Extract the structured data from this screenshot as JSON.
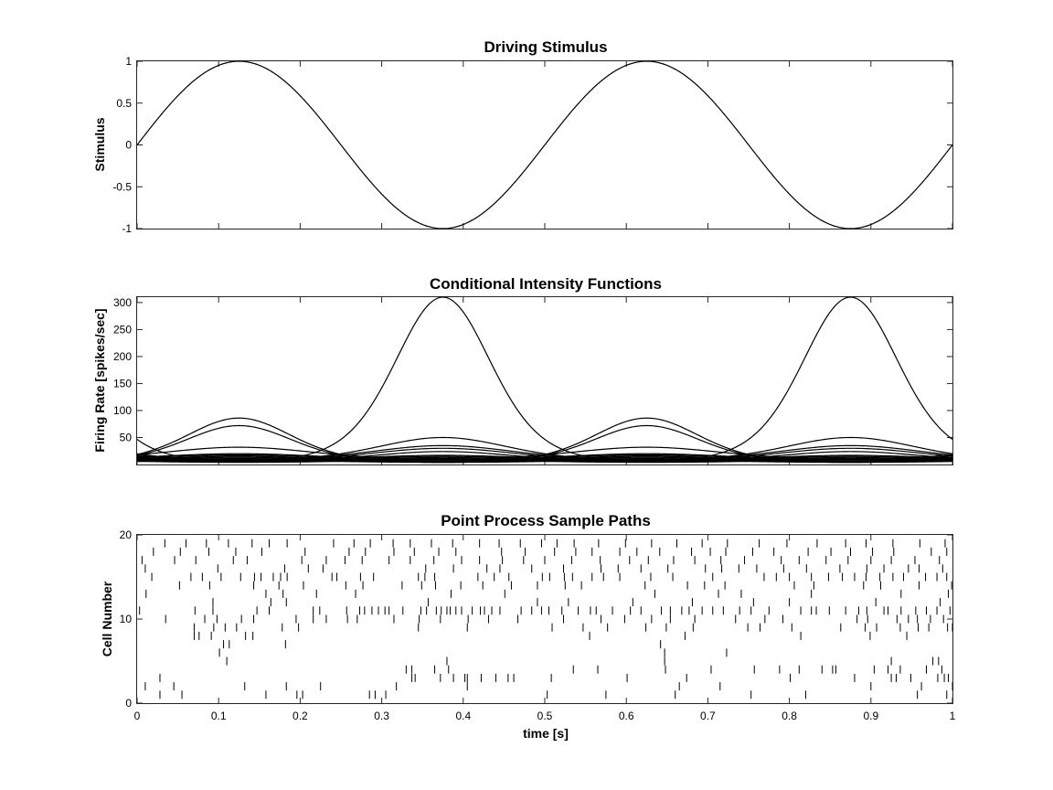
{
  "chart_data": [
    {
      "type": "line",
      "title": "Driving Stimulus",
      "xlabel": "",
      "ylabel": "Stimulus",
      "xlim": [
        0,
        1
      ],
      "ylim": [
        -1,
        1
      ],
      "yticks": [
        -1,
        -0.5,
        0,
        0.5,
        1
      ],
      "ytick_labels": [
        "-1",
        "-0.5",
        "0",
        "0.5",
        "1"
      ],
      "xtick_labels_shown": false,
      "series": [
        {
          "function": "sin(2*pi*2*t)",
          "x": [
            0,
            0.0625,
            0.125,
            0.1875,
            0.25,
            0.3125,
            0.375,
            0.4375,
            0.5,
            0.5625,
            0.625,
            0.6875,
            0.75,
            0.8125,
            0.875,
            0.9375,
            1
          ],
          "y": [
            0,
            0.707,
            1,
            0.707,
            0,
            -0.707,
            -1,
            -0.707,
            0,
            0.707,
            1,
            0.707,
            0,
            -0.707,
            -1,
            -0.707,
            0
          ]
        }
      ]
    },
    {
      "type": "line",
      "title": "Conditional Intensity Functions",
      "xlabel": "",
      "ylabel": "Firing Rate [spikes/sec]",
      "xlim": [
        0,
        1
      ],
      "ylim": [
        0,
        310
      ],
      "yticks": [
        50,
        100,
        150,
        200,
        250,
        300
      ],
      "ytick_labels": [
        "50",
        "100",
        "150",
        "200",
        "250",
        "300"
      ],
      "xtick_labels_shown": false,
      "series": [
        {
          "peak": 310,
          "trough": 7,
          "peak_x": [
            0.375,
            0.875
          ]
        },
        {
          "peak": 86,
          "trough": 4,
          "peak_x": [
            0.125,
            0.625
          ]
        },
        {
          "peak": 72,
          "trough": 4,
          "peak_x": [
            0.125,
            0.625
          ]
        },
        {
          "peak": 50,
          "trough": 8,
          "peak_x": [
            0.375,
            0.875
          ]
        },
        {
          "peak": 35,
          "trough": 9,
          "peak_x": [
            0.375,
            0.875
          ]
        },
        {
          "peak": 32,
          "trough": 10,
          "peak_x": [
            0.125,
            0.625
          ]
        },
        {
          "peak": 30,
          "trough": 8,
          "peak_x": [
            0.375,
            0.875
          ]
        },
        {
          "peak": 24,
          "trough": 6,
          "peak_x": [
            0.375,
            0.875
          ]
        },
        {
          "peak": 20,
          "trough": 9,
          "peak_x": [
            0.125,
            0.625
          ]
        },
        {
          "peak": 18,
          "trough": 8,
          "peak_x": [
            0.125,
            0.625
          ]
        },
        {
          "peak": 17,
          "trough": 8,
          "peak_x": [
            0.375,
            0.875
          ]
        },
        {
          "peak": 16,
          "trough": 6,
          "peak_x": [
            0.125,
            0.625
          ]
        },
        {
          "peak": 15,
          "trough": 7,
          "peak_x": [
            0.375,
            0.875
          ]
        },
        {
          "peak": 14,
          "trough": 6,
          "peak_x": [
            0.125,
            0.625
          ]
        },
        {
          "peak": 13,
          "trough": 5,
          "peak_x": [
            0.375,
            0.875
          ]
        },
        {
          "peak": 12,
          "trough": 6,
          "peak_x": [
            0.125,
            0.625
          ]
        },
        {
          "peak": 11,
          "trough": 5,
          "peak_x": [
            0.375,
            0.875
          ]
        },
        {
          "peak": 10,
          "trough": 5,
          "peak_x": [
            0.125,
            0.625
          ]
        },
        {
          "peak": 9,
          "trough": 4,
          "peak_x": [
            0.375,
            0.875
          ]
        },
        {
          "peak": 8,
          "trough": 4,
          "peak_x": [
            0.125,
            0.625
          ]
        }
      ]
    },
    {
      "type": "scatter",
      "title": "Point Process Sample Paths",
      "xlabel": "time [s]",
      "ylabel": "Cell Number",
      "xlim": [
        0,
        1
      ],
      "ylim": [
        0,
        20
      ],
      "yticks": [
        0,
        10,
        20
      ],
      "ytick_labels": [
        "0",
        "10",
        "20"
      ],
      "xticks": [
        0,
        0.1,
        0.2,
        0.3,
        0.4,
        0.5,
        0.6,
        0.7,
        0.8,
        0.9,
        1
      ],
      "xtick_labels": [
        "0",
        "0.1",
        "0.2",
        "0.3",
        "0.4",
        "0.5",
        "0.6",
        "0.7",
        "0.8",
        "0.9",
        "1"
      ],
      "rows": [
        {
          "cell": 1,
          "spikes": [
            0.028,
            0.055,
            0.158,
            0.196,
            0.203,
            0.285,
            0.292,
            0.305,
            0.503,
            0.575,
            0.66,
            0.753,
            0.82,
            0.957,
            0.993
          ]
        },
        {
          "cell": 2,
          "spikes": [
            0.01,
            0.045,
            0.132,
            0.183,
            0.225,
            0.318,
            0.405,
            0.665,
            0.715,
            0.9,
            0.962,
            1.0
          ]
        },
        {
          "cell": 3,
          "spikes": [
            0.028,
            0.337,
            0.341,
            0.372,
            0.388,
            0.402,
            0.405,
            0.422,
            0.44,
            0.455,
            0.462,
            0.508,
            0.601,
            0.674,
            0.801,
            0.88,
            0.925,
            0.931,
            0.949,
            0.982,
            0.99,
            0.995
          ]
        },
        {
          "cell": 4,
          "spikes": [
            0.33,
            0.337,
            0.365,
            0.382,
            0.535,
            0.565,
            0.648,
            0.704,
            0.757,
            0.788,
            0.812,
            0.84,
            0.853,
            0.857,
            0.904,
            0.921,
            0.936,
            0.968,
            0.987
          ]
        },
        {
          "cell": 5,
          "spikes": [
            0.11,
            0.38,
            0.647,
            0.925,
            0.976,
            0.983
          ]
        },
        {
          "cell": 6,
          "spikes": [
            0.101,
            0.647,
            0.723
          ]
        },
        {
          "cell": 7,
          "spikes": [
            0.106,
            0.113,
            0.182,
            0.642
          ]
        },
        {
          "cell": 8,
          "spikes": [
            0.07,
            0.076,
            0.091,
            0.133,
            0.142,
            0.555,
            0.672,
            0.814,
            0.899,
            0.944
          ]
        },
        {
          "cell": 9,
          "spikes": [
            0.07,
            0.094,
            0.108,
            0.122,
            0.178,
            0.198,
            0.345,
            0.405,
            0.509,
            0.547,
            0.577,
            0.624,
            0.649,
            0.682,
            0.749,
            0.764,
            0.803,
            0.863,
            0.893,
            0.907,
            0.936,
            0.958,
            0.971,
            0.994,
            1.0
          ]
        },
        {
          "cell": 10,
          "spikes": [
            0.035,
            0.083,
            0.098,
            0.128,
            0.143,
            0.195,
            0.216,
            0.232,
            0.258,
            0.27,
            0.315,
            0.346,
            0.372,
            0.406,
            0.431,
            0.467,
            0.523,
            0.569,
            0.598,
            0.631,
            0.654,
            0.684,
            0.734,
            0.77,
            0.792,
            0.883,
            0.896,
            0.932,
            0.946,
            0.957,
            0.973,
            0.989
          ]
        },
        {
          "cell": 11,
          "spikes": [
            0.003,
            0.071,
            0.093,
            0.147,
            0.162,
            0.216,
            0.224,
            0.257,
            0.273,
            0.279,
            0.288,
            0.296,
            0.304,
            0.309,
            0.326,
            0.348,
            0.355,
            0.367,
            0.373,
            0.38,
            0.384,
            0.391,
            0.398,
            0.411,
            0.421,
            0.426,
            0.435,
            0.445,
            0.471,
            0.484,
            0.496,
            0.505,
            0.521,
            0.541,
            0.556,
            0.563,
            0.583,
            0.605,
            0.618,
            0.643,
            0.654,
            0.668,
            0.677,
            0.693,
            0.706,
            0.719,
            0.739,
            0.753,
            0.775,
            0.814,
            0.827,
            0.833,
            0.849,
            0.869,
            0.885,
            0.895,
            0.916,
            0.921,
            0.937,
            0.955,
            0.968,
            0.981,
            0.997
          ]
        },
        {
          "cell": 12,
          "spikes": [
            0.093,
            0.164,
            0.183,
            0.357,
            0.491,
            0.529,
            0.608,
            0.681,
            0.756,
            0.8,
            0.906,
            0.985
          ]
        },
        {
          "cell": 13,
          "spikes": [
            0.011,
            0.158,
            0.179,
            0.22,
            0.268,
            0.385,
            0.451,
            0.635,
            0.713,
            0.741,
            0.827,
            0.937,
            0.995
          ]
        },
        {
          "cell": 14,
          "spikes": [
            0.052,
            0.089,
            0.143,
            0.174,
            0.204,
            0.256,
            0.277,
            0.325,
            0.349,
            0.366,
            0.397,
            0.424,
            0.459,
            0.491,
            0.525,
            0.545,
            0.623,
            0.675,
            0.696,
            0.721,
            0.806,
            0.83,
            0.891,
            0.912,
            0.959,
            0.999
          ]
        },
        {
          "cell": 15,
          "spikes": [
            0.018,
            0.066,
            0.08,
            0.103,
            0.127,
            0.144,
            0.152,
            0.167,
            0.176,
            0.184,
            0.239,
            0.245,
            0.274,
            0.29,
            0.345,
            0.353,
            0.365,
            0.418,
            0.438,
            0.456,
            0.497,
            0.506,
            0.524,
            0.534,
            0.558,
            0.572,
            0.592,
            0.63,
            0.657,
            0.706,
            0.769,
            0.784,
            0.8,
            0.827,
            0.848,
            0.865,
            0.88,
            0.894,
            0.911,
            0.927,
            0.94,
            0.967,
            0.981,
            0.993
          ]
        },
        {
          "cell": 16,
          "spikes": [
            0.01,
            0.099,
            0.181,
            0.21,
            0.228,
            0.354,
            0.388,
            0.429,
            0.445,
            0.484,
            0.523,
            0.569,
            0.59,
            0.618,
            0.651,
            0.697,
            0.717,
            0.738,
            0.76,
            0.793,
            0.821,
            0.862,
            0.895,
            0.916,
            0.946,
            0.959,
            0.988
          ]
        },
        {
          "cell": 17,
          "spikes": [
            0.006,
            0.046,
            0.072,
            0.118,
            0.135,
            0.202,
            0.232,
            0.255,
            0.276,
            0.309,
            0.335,
            0.364,
            0.398,
            0.42,
            0.448,
            0.474,
            0.5,
            0.533,
            0.568,
            0.604,
            0.627,
            0.658,
            0.684,
            0.716,
            0.745,
            0.79,
            0.812,
            0.845,
            0.872,
            0.9,
            0.925,
            0.954,
            0.984
          ]
        },
        {
          "cell": 18,
          "spikes": [
            0.02,
            0.053,
            0.088,
            0.121,
            0.153,
            0.206,
            0.26,
            0.28,
            0.315,
            0.34,
            0.37,
            0.391,
            0.447,
            0.476,
            0.512,
            0.538,
            0.558,
            0.592,
            0.613,
            0.641,
            0.68,
            0.703,
            0.722,
            0.755,
            0.781,
            0.823,
            0.851,
            0.875,
            0.902,
            0.928,
            0.974,
            0.993
          ]
        },
        {
          "cell": 19,
          "spikes": [
            0.034,
            0.06,
            0.085,
            0.112,
            0.141,
            0.162,
            0.184,
            0.241,
            0.266,
            0.286,
            0.314,
            0.335,
            0.361,
            0.387,
            0.42,
            0.444,
            0.47,
            0.496,
            0.515,
            0.536,
            0.566,
            0.599,
            0.631,
            0.662,
            0.693,
            0.724,
            0.763,
            0.797,
            0.834,
            0.869,
            0.894,
            0.927,
            0.96,
            0.991
          ]
        }
      ]
    }
  ]
}
